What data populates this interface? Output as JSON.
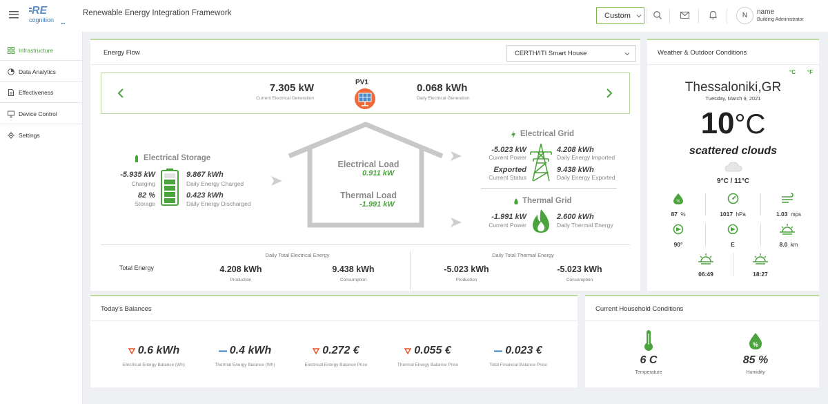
{
  "header": {
    "logo_text": "RE cognition",
    "app_title": "Renewable Energy Integration Framework",
    "view_select": "Custom",
    "user": {
      "initial": "N",
      "name": "name",
      "role": "Building Administrator"
    }
  },
  "sidebar": {
    "items": [
      {
        "label": "Infrastructure",
        "icon": "grid-icon"
      },
      {
        "label": "Data Analytics",
        "icon": "pie-chart-icon"
      },
      {
        "label": "Effectiveness",
        "icon": "document-icon"
      },
      {
        "label": "Device Control",
        "icon": "monitor-icon"
      },
      {
        "label": "Settings",
        "icon": "gear-icon"
      }
    ]
  },
  "energy_flow": {
    "title": "Energy Flow",
    "site_select": "CERTH/ITI Smart House",
    "pv": {
      "name": "PV1",
      "current_value": "7.305 kW",
      "current_label": "Current Electrical Generation",
      "daily_value": "0.068 kWh",
      "daily_label": "Daily Electrical Generation"
    },
    "storage": {
      "title": "Electrical Storage",
      "power_value": "-5.935 kW",
      "power_label": "Charging",
      "charged_value": "9.867 kWh",
      "charged_label": "Daily Energy Charged",
      "soc_value": "82 %",
      "soc_label": "Storage",
      "discharged_value": "0.423 kWh",
      "discharged_label": "Daily Energy Discharged",
      "soc_fraction": 0.82
    },
    "house": {
      "electrical_load_label": "Electrical Load",
      "electrical_load_value": "0.911 kW",
      "thermal_load_label": "Thermal Load",
      "thermal_load_value": "-1.991 kW"
    },
    "grid": {
      "title": "Electrical Grid",
      "power_value": "-5.023 kW",
      "power_label": "Current Power",
      "imported_value": "4.208 kWh",
      "imported_label": "Daily Energy Imported",
      "status_value": "Exported",
      "status_label": "Current Status",
      "exported_value": "9.438 kWh",
      "exported_label": "Daily Energy Exported"
    },
    "thermal_grid": {
      "title": "Thermal Grid",
      "power_value": "-1.991 kW",
      "power_label": "Current Power",
      "energy_value": "2.600 kWh",
      "energy_label": "Daily Thermal Energy"
    },
    "totals": {
      "row_label": "Total Energy",
      "electrical_title": "Daily Total Electrical Energy",
      "thermal_title": "Daily Total Thermal Energy",
      "elec_production": "4.208 kWh",
      "elec_consumption": "9.438 kWh",
      "thermal_production": "-5.023 kWh",
      "thermal_consumption": "-5.023 kWh",
      "production_label": "Production",
      "consumption_label": "Consumption"
    }
  },
  "weather": {
    "title": "Weather & Outdoor Conditions",
    "unit_c": "°C",
    "unit_f": "°F",
    "city": "Thessaloniki,GR",
    "date": "Tuesday, March 9, 2021",
    "temp_number": "10",
    "temp_unit": "°C",
    "description": "scattered clouds",
    "min_max": "9°C / 11°C",
    "humidity": "87",
    "humidity_unit": "%",
    "pressure": "1017",
    "pressure_unit": "hPa",
    "wind_speed": "1.03",
    "wind_speed_unit": "mps",
    "wind_deg": "90°",
    "wind_dir": "E",
    "visibility": "8.0",
    "visibility_unit": "km",
    "sunrise": "06:49",
    "sunset": "18:27"
  },
  "balances": {
    "title": "Today's Balances",
    "items": [
      {
        "value": "0.6 kWh",
        "label": "Electrical Energy Balance (Wh)",
        "trend": "down"
      },
      {
        "value": "0.4 kWh",
        "label": "Thermal Energy Balance (Wh)",
        "trend": "flat"
      },
      {
        "value": "0.272 €",
        "label": "Electrical Energy Balance Price",
        "trend": "down"
      },
      {
        "value": "0.055 €",
        "label": "Thermal Energy Balance Price",
        "trend": "down"
      },
      {
        "value": "0.023 €",
        "label": "Total Financial Balance Price",
        "trend": "flat"
      }
    ]
  },
  "household": {
    "title": "Current Household Conditions",
    "temperature_value": "6 C",
    "temperature_label": "Temperature",
    "humidity_value": "85 %",
    "humidity_label": "Humidity"
  },
  "colors": {
    "accent": "#4aa33c",
    "border": "#b9d99a",
    "down": "#e8542a"
  }
}
